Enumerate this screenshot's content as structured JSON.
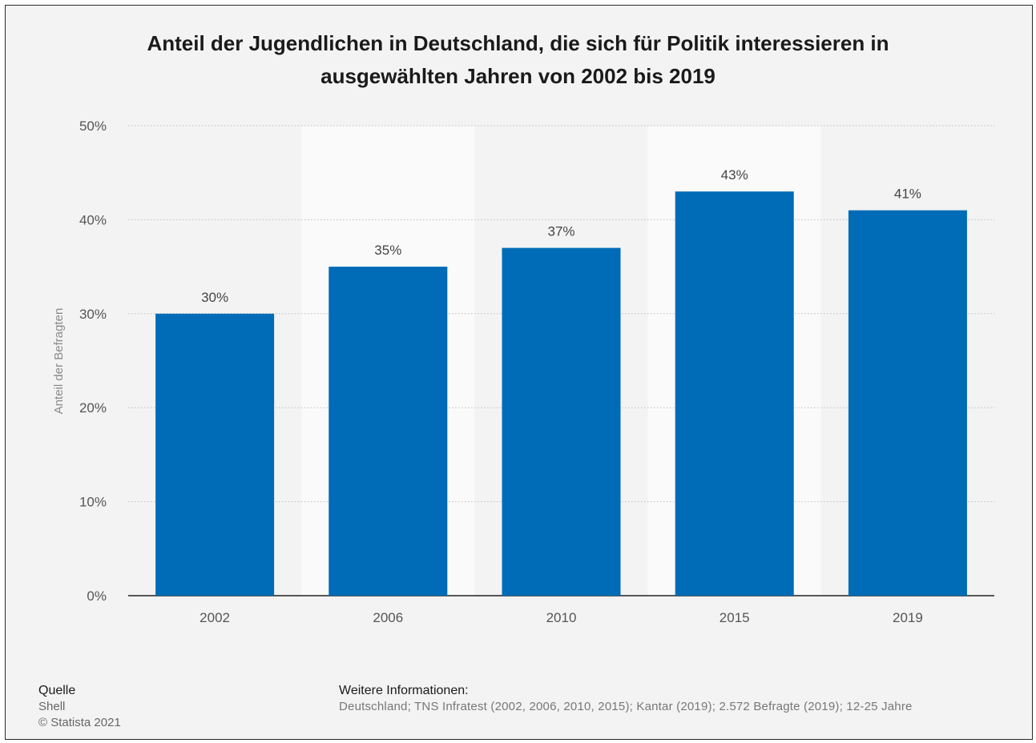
{
  "chart_data": {
    "type": "bar",
    "title_lines": [
      "Anteil der Jugendlichen in Deutschland, die sich für Politik interessieren in",
      "ausgewählten Jahren von 2002 bis 2019"
    ],
    "categories": [
      "2002",
      "2006",
      "2010",
      "2015",
      "2019"
    ],
    "values": [
      30,
      35,
      37,
      43,
      41
    ],
    "value_labels": [
      "30%",
      "35%",
      "37%",
      "43%",
      "41%"
    ],
    "xlabel": "",
    "ylabel": "Anteil der Befragten",
    "ylim": [
      0,
      50
    ],
    "yticks": [
      0,
      10,
      20,
      30,
      40,
      50
    ],
    "ytick_labels": [
      "0%",
      "10%",
      "20%",
      "30%",
      "40%",
      "50%"
    ],
    "grid": true,
    "legend": "none",
    "bar_color": "#006bb6"
  },
  "footer": {
    "source_heading": "Quelle",
    "source_name": "Shell",
    "copyright": "© Statista 2021",
    "info_heading": "Weitere Informationen:",
    "info_text": "Deutschland; TNS Infratest (2002, 2006, 2010, 2015); Kantar (2019); 2.572 Befragte (2019); 12-25 Jahre"
  }
}
